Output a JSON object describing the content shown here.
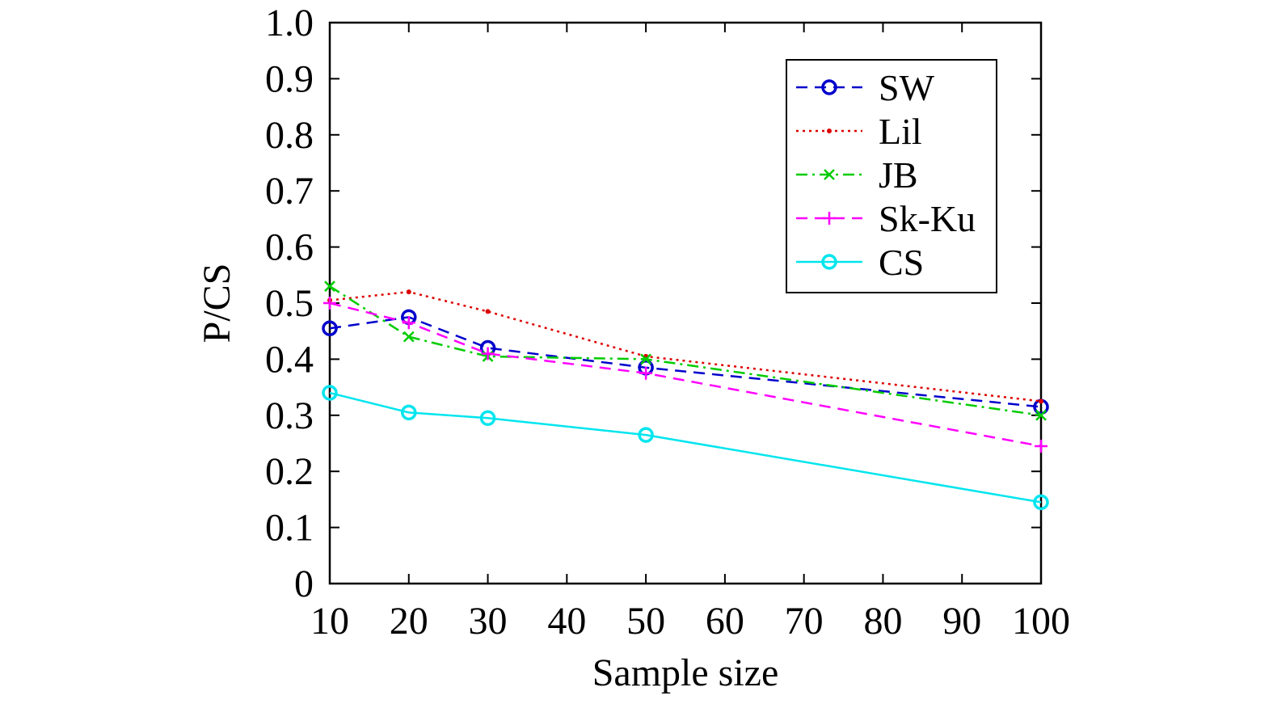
{
  "chart_data": {
    "type": "line",
    "xlabel": "Sample size",
    "ylabel": "P/CS",
    "xlim": [
      10,
      100
    ],
    "ylim": [
      0,
      1.0
    ],
    "x_ticks": [
      "10",
      "20",
      "30",
      "40",
      "50",
      "60",
      "70",
      "80",
      "90",
      "100"
    ],
    "y_ticks": [
      "0",
      "0.1",
      "0.2",
      "0.3",
      "0.4",
      "0.5",
      "0.6",
      "0.7",
      "0.8",
      "0.9",
      "1.0"
    ],
    "x": [
      10,
      20,
      30,
      50,
      100
    ],
    "grid": false,
    "legend_position": "top-right",
    "series": [
      {
        "name": "SW",
        "values": [
          0.455,
          0.475,
          0.42,
          0.385,
          0.315
        ],
        "color": "#0000cc",
        "dash": "dashed",
        "marker": "circle"
      },
      {
        "name": "Lil",
        "values": [
          0.505,
          0.52,
          0.485,
          0.405,
          0.325
        ],
        "color": "#dd0000",
        "dash": "dotted",
        "marker": "dot"
      },
      {
        "name": "JB",
        "values": [
          0.53,
          0.44,
          0.405,
          0.4,
          0.3
        ],
        "color": "#00cc00",
        "dash": "dashdot",
        "marker": "x"
      },
      {
        "name": "Sk-Ku",
        "values": [
          0.5,
          0.465,
          0.41,
          0.375,
          0.245
        ],
        "color": "#ff00ff",
        "dash": "dashed",
        "marker": "plus"
      },
      {
        "name": "CS",
        "values": [
          0.34,
          0.305,
          0.295,
          0.265,
          0.145
        ],
        "color": "#00e5ee",
        "dash": "solid",
        "marker": "circle"
      }
    ]
  }
}
